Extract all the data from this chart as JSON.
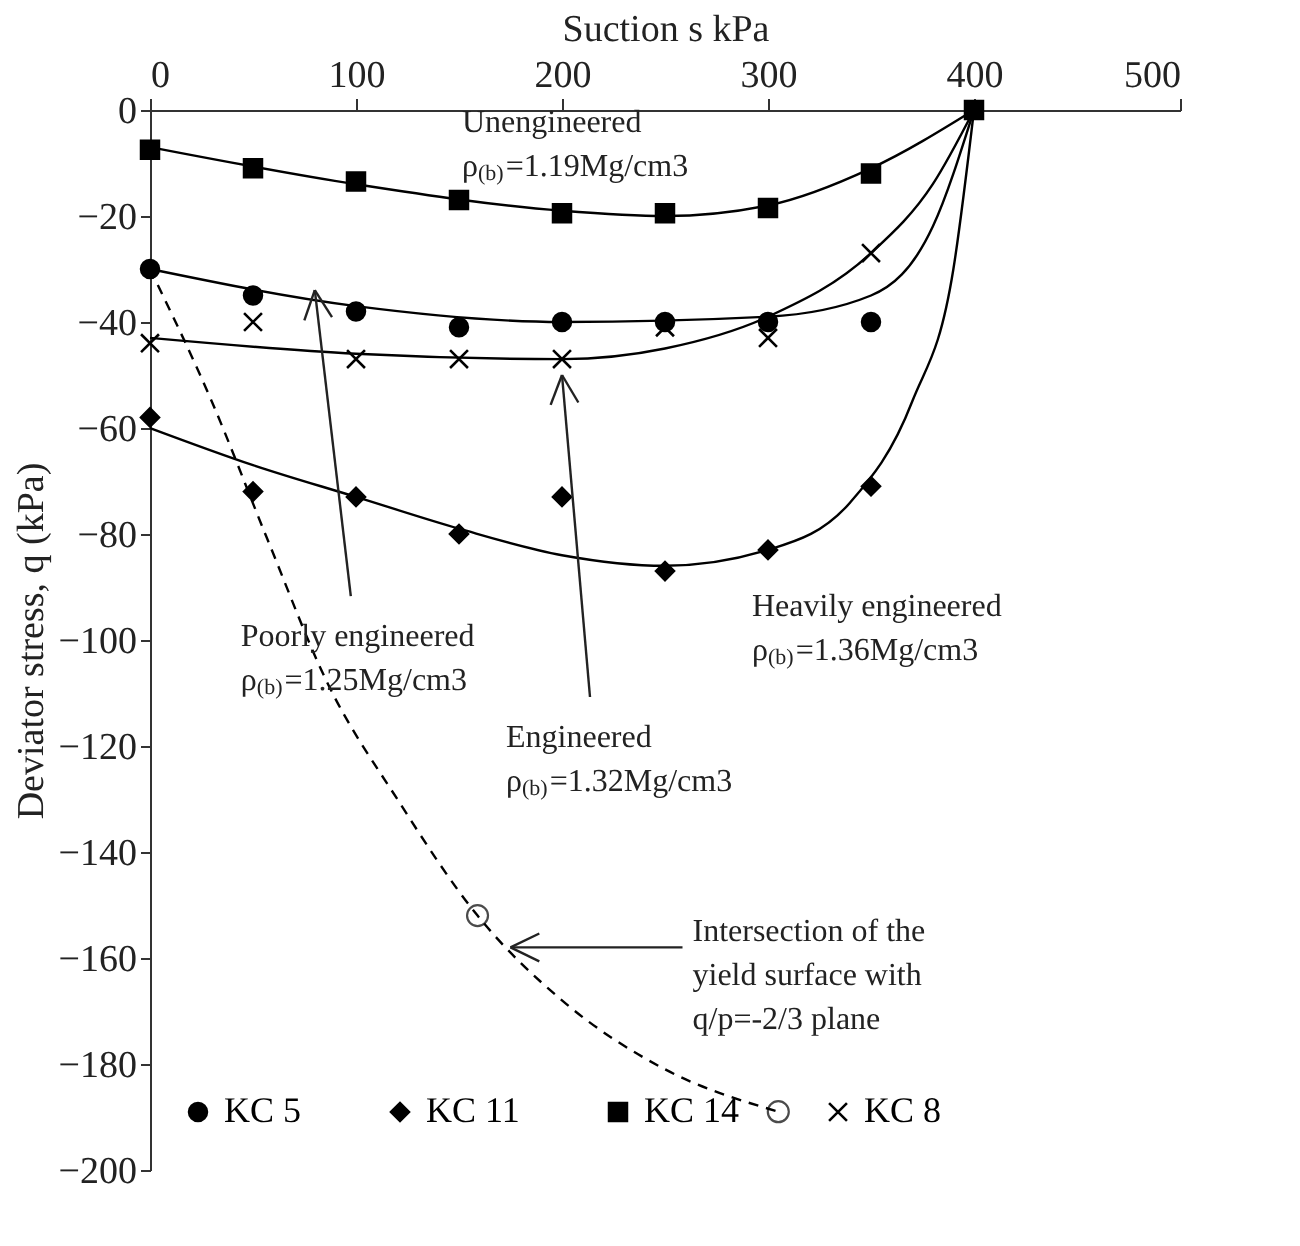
{
  "chart_data": {
    "type": "scatter",
    "xlabel": "Suction s kPa",
    "ylabel": "Deviator stress, q (kPa)",
    "xlim": [
      0,
      500
    ],
    "xticks": [
      0,
      100,
      200,
      300,
      400,
      500
    ],
    "ylim": [
      -200,
      0
    ],
    "yticks": [
      -200,
      -180,
      -160,
      -140,
      -120,
      -100,
      -80,
      -60,
      -40,
      -20,
      0
    ],
    "grid": false,
    "legend": "bottom",
    "series": [
      {
        "name": "KC 5",
        "marker": "circle",
        "color": "#000000",
        "x": [
          0,
          50,
          100,
          150,
          200,
          250,
          300,
          350
        ],
        "values": [
          -30,
          -35,
          -38,
          -41,
          -40,
          -40,
          -40,
          -40
        ]
      },
      {
        "name": "KC 11",
        "marker": "diamond",
        "color": "#000000",
        "x": [
          0,
          50,
          100,
          150,
          200,
          250,
          300,
          350
        ],
        "values": [
          -58,
          -72,
          -73,
          -80,
          -73,
          -87,
          -83,
          -71
        ]
      },
      {
        "name": "KC 14",
        "marker": "square",
        "color": "#000000",
        "x": [
          0,
          50,
          100,
          150,
          200,
          250,
          300,
          350,
          400
        ],
        "values": [
          -7.5,
          -11,
          -13.5,
          -17,
          -19.5,
          -19.5,
          -18.5,
          -12,
          0
        ]
      },
      {
        "name": "KC 8",
        "marker": "cross",
        "color": "#000000",
        "x": [
          0,
          50,
          100,
          150,
          200,
          250,
          300,
          350
        ],
        "values": [
          -44,
          -40,
          -47,
          -47,
          -47,
          -41,
          -43,
          -27
        ]
      },
      {
        "type": "line",
        "marker": "none",
        "line_style": "solid",
        "color": "#000000",
        "x": [
          0,
          100,
          200,
          250,
          300,
          350,
          400
        ],
        "values": [
          -7,
          -14,
          -19,
          -20,
          -18,
          -11,
          0
        ]
      },
      {
        "type": "line",
        "marker": "none",
        "line_style": "solid",
        "color": "#000000",
        "x": [
          0,
          100,
          200,
          300,
          350,
          380,
          400
        ],
        "values": [
          -30,
          -37,
          -40,
          -39,
          -35,
          -22,
          0
        ]
      },
      {
        "type": "line",
        "marker": "none",
        "line_style": "solid",
        "color": "#000000",
        "x": [
          0,
          100,
          200,
          250,
          300,
          350,
          380,
          400
        ],
        "values": [
          -43,
          -46,
          -47,
          -45,
          -39,
          -27,
          -14,
          0
        ]
      },
      {
        "type": "line",
        "marker": "none",
        "line_style": "solid",
        "color": "#000000",
        "x": [
          0,
          50,
          100,
          150,
          200,
          250,
          300,
          340,
          370,
          390,
          400
        ],
        "values": [
          -60,
          -67,
          -73,
          -79,
          -84,
          -86,
          -83,
          -74,
          -55,
          -30,
          0
        ]
      },
      {
        "type": "line",
        "marker": "none",
        "line_style": "dashed",
        "color": "#000000",
        "x": [
          0,
          30,
          57,
          86,
          120,
          159,
          200,
          250,
          305
        ],
        "values": [
          -30,
          -55,
          -81,
          -108,
          -130,
          -152,
          -168,
          -181,
          -189
        ]
      },
      {
        "marker": "circle",
        "color": "#000000",
        "x": [
          159,
          305
        ],
        "values": [
          -152,
          -189
        ]
      }
    ],
    "annotations": [
      "Unengineered\nρ$_{(b)}$=1.19Mg/cm3",
      {
        "text": "Poorly engineered\nρ$_{(b)}$=1.25Mg/cm3",
        "x": 80,
        "y": -34
      },
      {
        "text": "Engineered\nρ$_{(b)}$=1.32Mg/cm3",
        "x": 200,
        "y": -50
      },
      "Heavily engineered\nρ$_{(b)}$=1.36Mg/cm3",
      {
        "text": "Intersection of the\nyield surface with\nq/p=-2/3 plane",
        "x": 175,
        "y": -158
      }
    ]
  }
}
